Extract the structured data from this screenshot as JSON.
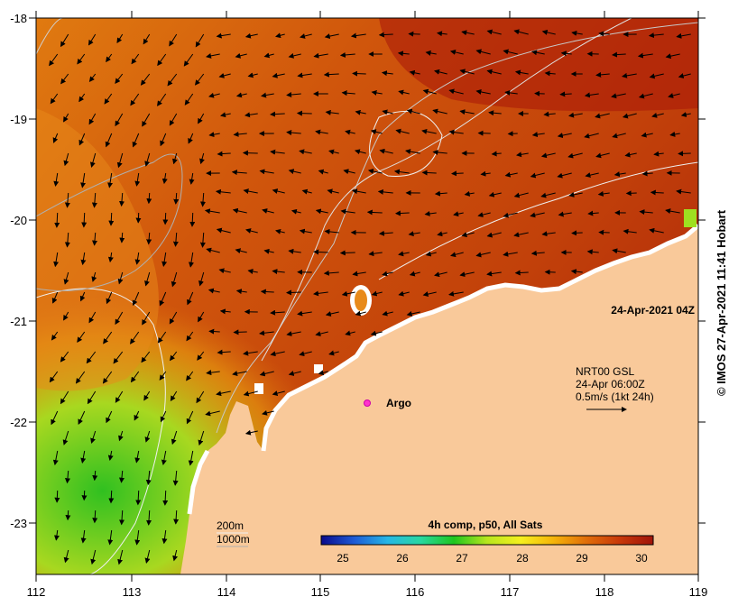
{
  "map": {
    "timestamp": "24-Apr-2021 04Z",
    "current_legend": {
      "source": "NRT00 GSL",
      "time": "24-Apr 06:00Z",
      "scale": "0.5m/s (1kt 24h)"
    },
    "argo_label": "Argo",
    "isobaths": [
      "200m",
      "1000m"
    ],
    "colorbar": {
      "title": "4h comp, p50, All Sats",
      "ticks": [
        "25",
        "26",
        "27",
        "28",
        "29",
        "30"
      ],
      "colors": [
        "#0a0a8c",
        "#1e5bd6",
        "#27b7e6",
        "#28d8a0",
        "#1ec61e",
        "#b8e61e",
        "#f5f01e",
        "#f5b40a",
        "#e06d0a",
        "#c8380a",
        "#a0140a"
      ]
    },
    "lon_ticks": [
      "112",
      "113",
      "114",
      "115",
      "116",
      "117",
      "118",
      "119"
    ],
    "lat_ticks": [
      "-18",
      "-19",
      "-20",
      "-21",
      "-22",
      "-23"
    ],
    "credit": "© IMOS 27-Apr-2021 11:41 Hobart",
    "land_color": "#f9c99a"
  }
}
